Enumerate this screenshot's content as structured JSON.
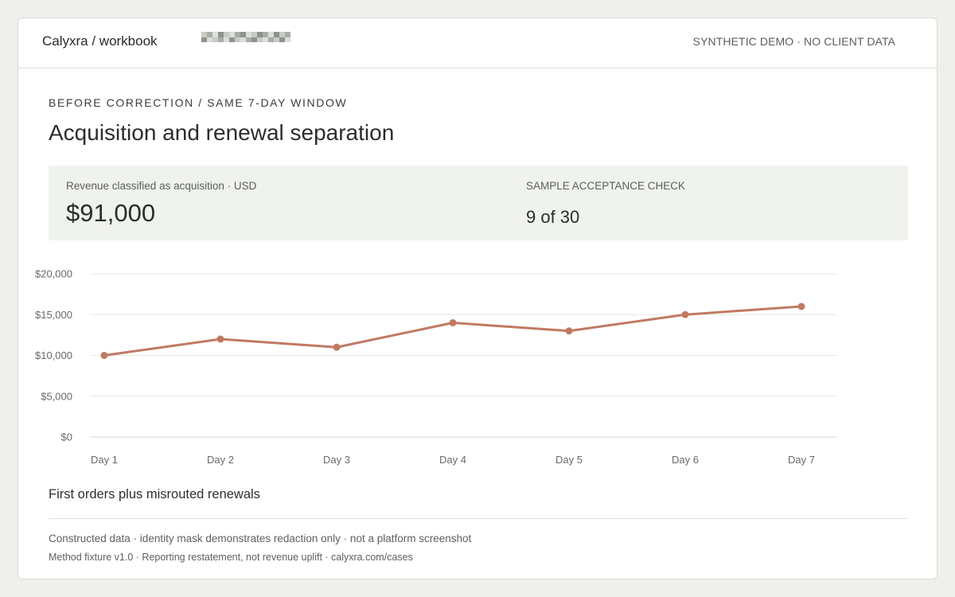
{
  "header": {
    "brand": "Calyxra / workbook",
    "demo_tag": "SYNTHETIC DEMO · NO CLIENT DATA"
  },
  "eyebrow": "BEFORE CORRECTION / SAME 7-DAY WINDOW",
  "title": "Acquisition and renewal separation",
  "metrics": {
    "revenue_label": "Revenue classified as acquisition · USD",
    "revenue_value": "$91,000",
    "acceptance_label": "SAMPLE ACCEPTANCE CHECK",
    "acceptance_value": "9 of 30"
  },
  "chart_data": {
    "type": "line",
    "title": "",
    "xlabel": "",
    "ylabel": "",
    "categories": [
      "Day 1",
      "Day 2",
      "Day 3",
      "Day 4",
      "Day 5",
      "Day 6",
      "Day 7"
    ],
    "series": [
      {
        "values": [
          10000,
          12000,
          11000,
          14000,
          13000,
          15000,
          16000
        ],
        "color": "#c07a62"
      }
    ],
    "ylim": [
      0,
      20000
    ],
    "yticks": [
      0,
      5000,
      10000,
      15000,
      20000
    ],
    "ytick_labels": [
      "$0",
      "$5,000",
      "$10,000",
      "$15,000",
      "$20,000"
    ],
    "grid": true,
    "legend": "none"
  },
  "caption": "First orders plus misrouted renewals",
  "footer": {
    "line1": "Constructed data · identity mask demonstrates redaction only · not a platform screenshot",
    "line2": "Method fixture v1.0 · Reporting restatement, not revenue uplift · calyxra.com/cases"
  },
  "colors": {
    "accent_line": "#c07a62",
    "panel_bg": "#f0f2ee",
    "page_bg": "#eff0ec",
    "mask_tones": [
      "#c8cbc3",
      "#a9ada5",
      "#8e938b",
      "#dcdeda"
    ]
  }
}
